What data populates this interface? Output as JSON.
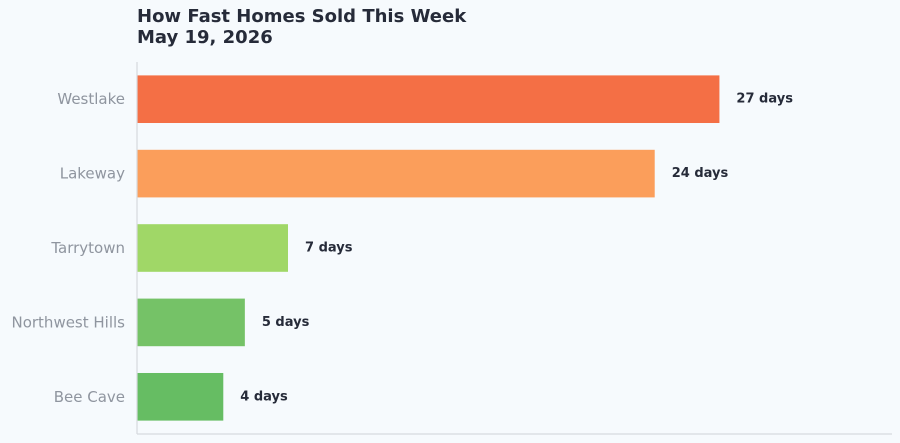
{
  "chart_data": {
    "type": "bar",
    "orientation": "horizontal",
    "title": "How Fast Homes Sold This Week",
    "subtitle": "May 19, 2026",
    "categories": [
      "Westlake",
      "Lakeway",
      "Tarrytown",
      "Northwest Hills",
      "Bee Cave"
    ],
    "values": [
      27,
      24,
      7,
      5,
      4
    ],
    "value_labels": [
      "27 days",
      "24 days",
      "7 days",
      "5 days",
      "4 days"
    ],
    "colors": [
      "#f46f45",
      "#fb9e5b",
      "#a0d767",
      "#75c267",
      "#66bd63"
    ],
    "xlim": [
      0,
      35
    ],
    "grid": false,
    "legend": "none"
  }
}
